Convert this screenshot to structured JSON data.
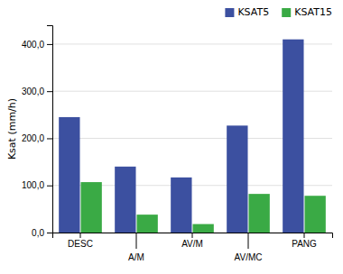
{
  "chart_data": {
    "type": "bar",
    "categories": [
      "DESC",
      "A/M",
      "AV/M",
      "AV/MC",
      "PANG"
    ],
    "series": [
      {
        "name": "KSAT5",
        "color": "#3c50a0",
        "values": [
          245,
          140,
          117,
          227,
          410
        ]
      },
      {
        "name": "KSAT15",
        "color": "#3aaa45",
        "values": [
          107,
          38,
          18,
          82,
          78
        ]
      }
    ],
    "y_label": "Ksat (mm/h)",
    "ylim": [
      0,
      440
    ],
    "yticks": [
      {
        "value": 0,
        "label": "0,0"
      },
      {
        "value": 100,
        "label": "100,0"
      },
      {
        "value": 200,
        "label": "200,0"
      },
      {
        "value": 300,
        "label": "300,0"
      },
      {
        "value": 400,
        "label": "400,0"
      }
    ],
    "grid": true,
    "legend": "top-right"
  }
}
